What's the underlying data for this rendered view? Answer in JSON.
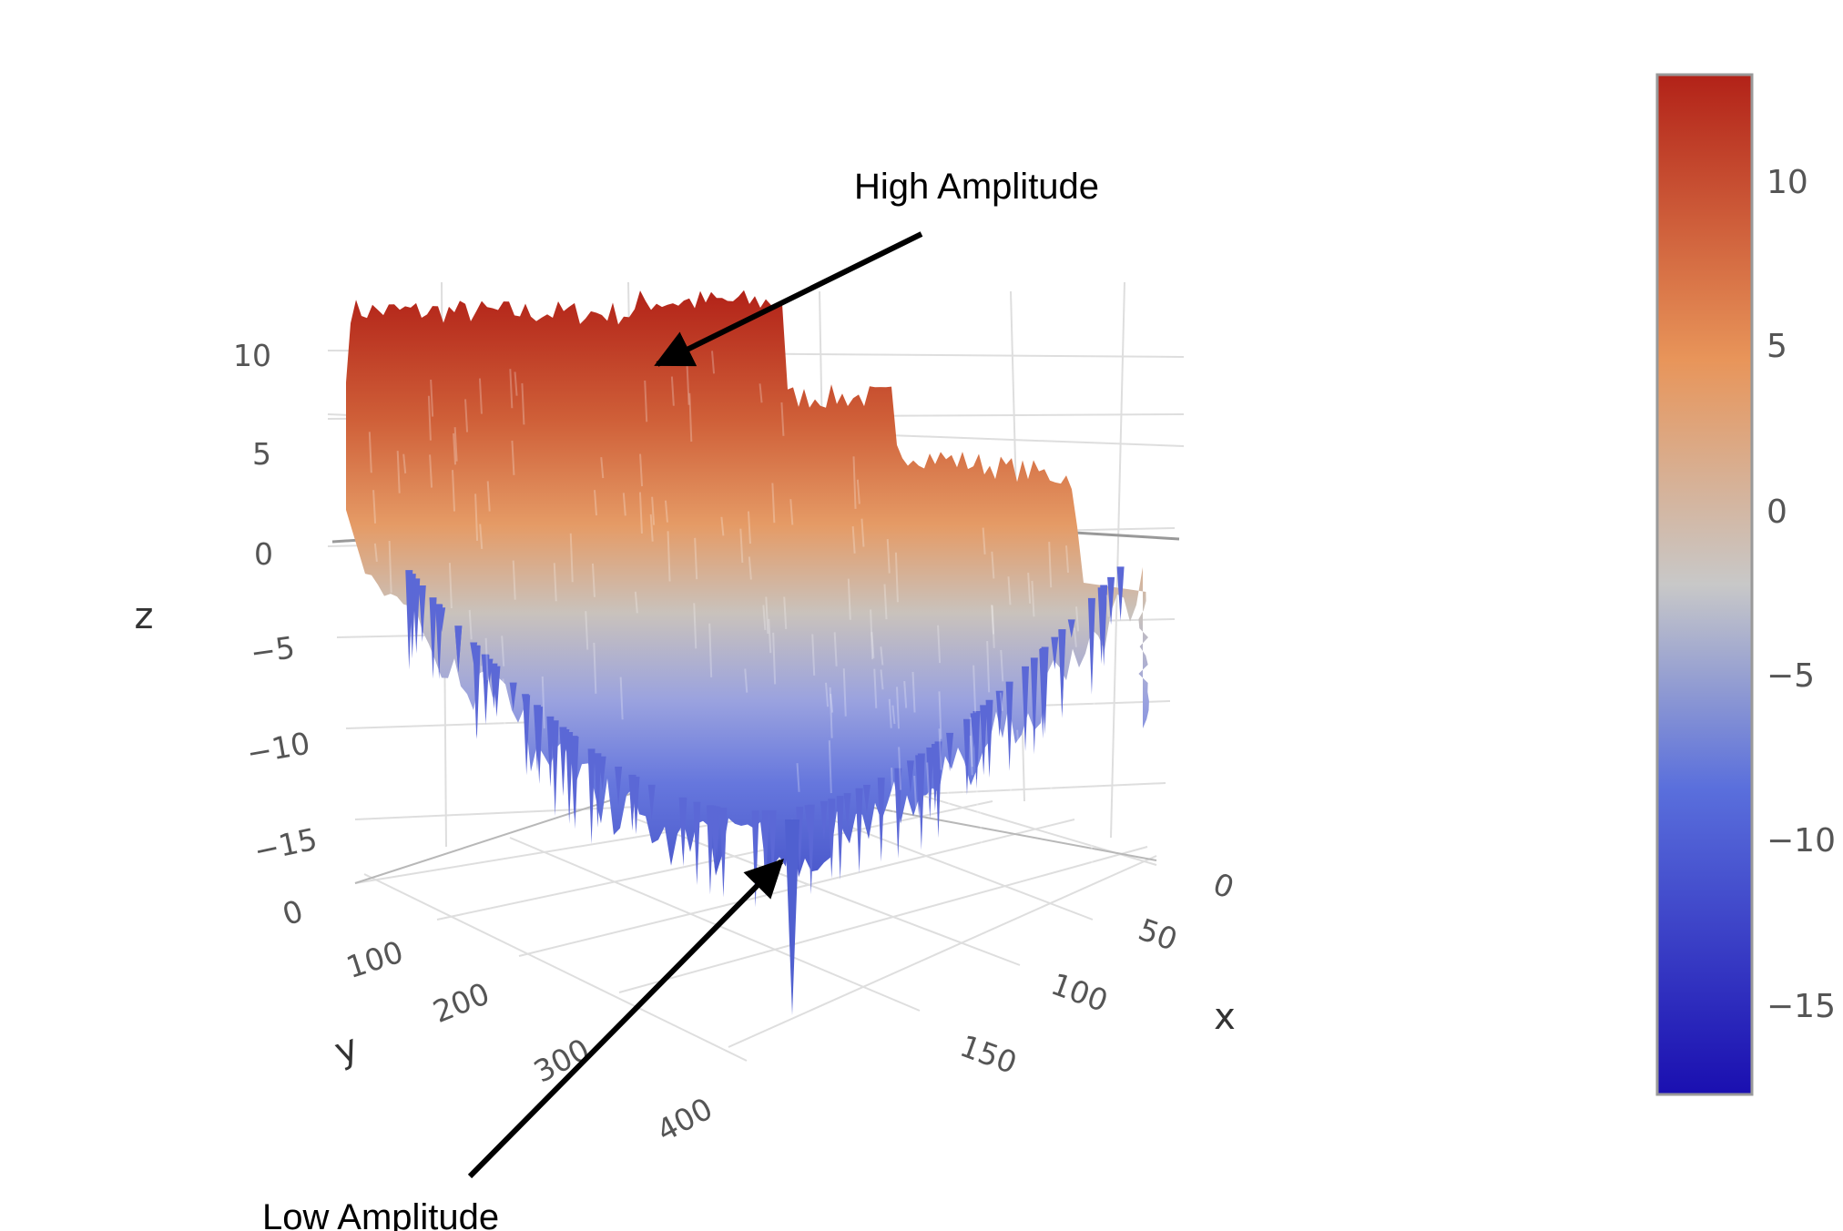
{
  "chart_data": {
    "type": "surface",
    "xlabel": "x",
    "ylabel": "y",
    "zlabel": "z",
    "x_ticks": [
      "0",
      "50",
      "100",
      "150"
    ],
    "y_ticks": [
      "0",
      "100",
      "200",
      "300",
      "400"
    ],
    "z_ticks": [
      "10",
      "5",
      "0",
      "−5",
      "−10",
      "−15"
    ],
    "xlim": [
      0,
      180
    ],
    "ylim": [
      0,
      420
    ],
    "zlim": [
      -18,
      13
    ],
    "colorbar": {
      "ticks": [
        "10",
        "5",
        "0",
        "−5",
        "−10",
        "−15"
      ],
      "range": [
        -17.5,
        13
      ],
      "colors": [
        "#1a0fb0",
        "#5a6fdc",
        "#c8c8c8",
        "#e8955a",
        "#b22218"
      ]
    },
    "annotations": [
      {
        "text": "High Amplitude"
      },
      {
        "text": "Low Amplitude"
      }
    ],
    "legend": "none",
    "grid": true
  }
}
